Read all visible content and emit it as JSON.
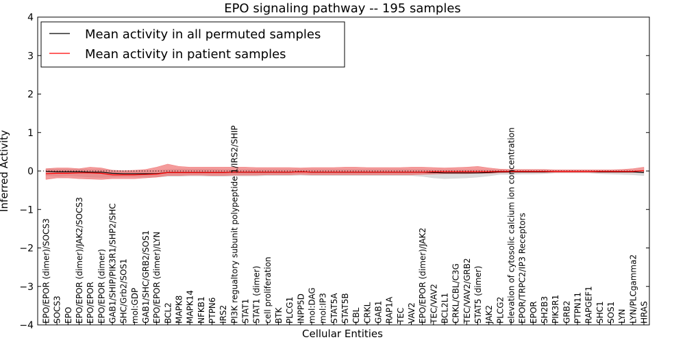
{
  "chart_data": {
    "type": "line",
    "title": "EPO signaling pathway -- 195 samples",
    "xlabel": "Cellular Entities",
    "ylabel": "Inferred Activity",
    "ylim": [
      -4,
      4
    ],
    "yticks": [
      -4,
      -3,
      -2,
      -1,
      0,
      1,
      2,
      3,
      4
    ],
    "ytick_labels": [
      "−4",
      "−3",
      "−2",
      "−1",
      "0",
      "1",
      "2",
      "3",
      "4"
    ],
    "grid": false,
    "legend_position": "top-left",
    "categories": [
      "EPO/EPOR (dimer)/SOCS3",
      "SOCS3",
      "EPO",
      "EPO/EPOR (dimer)/JAK2/SOCS3",
      "EPO/EPOR",
      "EPO/EPOR (dimer)",
      "GAB1/SHIP/PIK3R1/SHP2/SHC",
      "SHC/Grb2/SOS1",
      "mol:GDP",
      "GAB1/SHC/GRB2/SOS1",
      "EPO/EPOR (dimer)/LYN",
      "BCL2",
      "MAPK8",
      "MAPK14",
      "NFKB1",
      "PTPN6",
      "IRS2",
      "PI3K regualtory subunit polypeptide 1/IRS2/SHIP",
      "STAT1",
      "STAT1 (dimer)",
      "cell proliferation",
      "BTK",
      "PLCG1",
      "INPP5D",
      "mol:DAG",
      "mol:IP3",
      "STAT5A",
      "STAT5B",
      "CBL",
      "CRKL",
      "GAB1",
      "RAP1A",
      "TEC",
      "VAV2",
      "EPO/EPOR (dimer)/JAK2",
      "TEC/VAV2",
      "BCL2L1",
      "CRKL/CBL/C3G",
      "TEC/VAV2/GRB2",
      "STAT5 (dimer)",
      "JAK2",
      "PLCG2",
      "elevation of cytosolic calcium ion concentration",
      "EPOR/TRPC2/IP3 Receptors",
      "EPOR",
      "SH2B3",
      "PIK3R1",
      "GRB2",
      "PTPN11",
      "RAPGEF1",
      "SHC1",
      "SOS1",
      "LYN",
      "LYN/PLCgamma2",
      "HRAS"
    ],
    "series": [
      {
        "name": "Mean activity in all permuted samples",
        "color": "#000000",
        "values": [
          -0.01,
          -0.02,
          -0.02,
          -0.02,
          -0.03,
          -0.03,
          -0.06,
          -0.07,
          -0.07,
          -0.07,
          -0.07,
          -0.04,
          -0.04,
          -0.04,
          -0.04,
          -0.04,
          -0.04,
          -0.03,
          -0.03,
          -0.03,
          -0.03,
          -0.03,
          -0.03,
          -0.02,
          -0.03,
          -0.03,
          -0.03,
          -0.03,
          -0.03,
          -0.03,
          -0.03,
          -0.03,
          -0.03,
          -0.03,
          -0.03,
          -0.04,
          -0.05,
          -0.05,
          -0.05,
          -0.05,
          -0.04,
          -0.02,
          -0.02,
          -0.02,
          -0.02,
          -0.02,
          -0.01,
          -0.01,
          -0.01,
          -0.01,
          -0.02,
          -0.02,
          -0.02,
          -0.02,
          -0.04
        ],
        "band_lower": [
          -0.12,
          -0.14,
          -0.12,
          -0.14,
          -0.16,
          -0.17,
          -0.16,
          -0.15,
          -0.15,
          -0.16,
          -0.16,
          -0.14,
          -0.14,
          -0.13,
          -0.13,
          -0.14,
          -0.14,
          -0.13,
          -0.13,
          -0.13,
          -0.12,
          -0.12,
          -0.12,
          -0.11,
          -0.12,
          -0.12,
          -0.12,
          -0.12,
          -0.12,
          -0.12,
          -0.12,
          -0.12,
          -0.12,
          -0.12,
          -0.14,
          -0.18,
          -0.2,
          -0.19,
          -0.18,
          -0.16,
          -0.13,
          -0.09,
          -0.09,
          -0.08,
          -0.08,
          -0.07,
          -0.05,
          -0.05,
          -0.05,
          -0.05,
          -0.07,
          -0.08,
          -0.09,
          -0.1,
          -0.12
        ],
        "band_upper": [
          0.06,
          0.05,
          0.05,
          0.05,
          0.04,
          0.04,
          0.02,
          0.01,
          0.01,
          0.01,
          0.02,
          0.04,
          0.05,
          0.05,
          0.05,
          0.05,
          0.04,
          0.04,
          0.04,
          0.04,
          0.04,
          0.04,
          0.04,
          0.04,
          0.04,
          0.04,
          0.04,
          0.04,
          0.04,
          0.04,
          0.04,
          0.04,
          0.04,
          0.04,
          0.04,
          0.03,
          0.03,
          0.03,
          0.03,
          0.03,
          0.03,
          0.03,
          0.03,
          0.03,
          0.03,
          0.03,
          0.02,
          0.02,
          0.02,
          0.02,
          0.02,
          0.02,
          0.02,
          0.02,
          0.02
        ],
        "band_color": "#cccccc"
      },
      {
        "name": "Mean activity in patient samples",
        "color": "#ff0000",
        "values": [
          -0.07,
          -0.06,
          -0.06,
          -0.05,
          -0.05,
          -0.06,
          -0.1,
          -0.1,
          -0.1,
          -0.09,
          -0.08,
          -0.04,
          -0.04,
          -0.04,
          -0.04,
          -0.04,
          -0.04,
          -0.03,
          -0.03,
          -0.03,
          -0.03,
          -0.03,
          -0.03,
          -0.02,
          -0.03,
          -0.03,
          -0.03,
          -0.03,
          -0.03,
          -0.03,
          -0.03,
          -0.03,
          -0.03,
          -0.03,
          -0.03,
          -0.02,
          -0.02,
          -0.02,
          -0.02,
          -0.02,
          -0.02,
          -0.01,
          -0.01,
          -0.01,
          -0.01,
          -0.01,
          -0.01,
          -0.01,
          -0.01,
          -0.01,
          -0.01,
          -0.01,
          -0.01,
          -0.01,
          0.01
        ],
        "band_lower": [
          -0.22,
          -0.18,
          -0.18,
          -0.2,
          -0.21,
          -0.22,
          -0.2,
          -0.2,
          -0.2,
          -0.18,
          -0.16,
          -0.12,
          -0.12,
          -0.11,
          -0.11,
          -0.12,
          -0.12,
          -0.11,
          -0.11,
          -0.11,
          -0.1,
          -0.1,
          -0.1,
          -0.09,
          -0.1,
          -0.1,
          -0.1,
          -0.1,
          -0.1,
          -0.1,
          -0.1,
          -0.1,
          -0.1,
          -0.1,
          -0.09,
          -0.08,
          -0.07,
          -0.07,
          -0.07,
          -0.06,
          -0.06,
          -0.05,
          -0.04,
          -0.04,
          -0.04,
          -0.04,
          -0.04,
          -0.04,
          -0.04,
          -0.04,
          -0.04,
          -0.04,
          -0.04,
          -0.04,
          -0.03
        ],
        "band_upper": [
          0.06,
          0.08,
          0.08,
          0.06,
          0.1,
          0.08,
          0.02,
          0.01,
          0.02,
          0.04,
          0.1,
          0.18,
          0.12,
          0.1,
          0.1,
          0.1,
          0.1,
          0.1,
          0.1,
          0.09,
          0.09,
          0.09,
          0.09,
          0.08,
          0.09,
          0.09,
          0.09,
          0.1,
          0.1,
          0.09,
          0.09,
          0.09,
          0.09,
          0.1,
          0.1,
          0.09,
          0.08,
          0.09,
          0.1,
          0.12,
          0.08,
          0.05,
          0.04,
          0.04,
          0.04,
          0.04,
          0.03,
          0.03,
          0.03,
          0.03,
          0.03,
          0.03,
          0.04,
          0.06,
          0.1
        ],
        "band_color": "#ee6666"
      }
    ]
  }
}
